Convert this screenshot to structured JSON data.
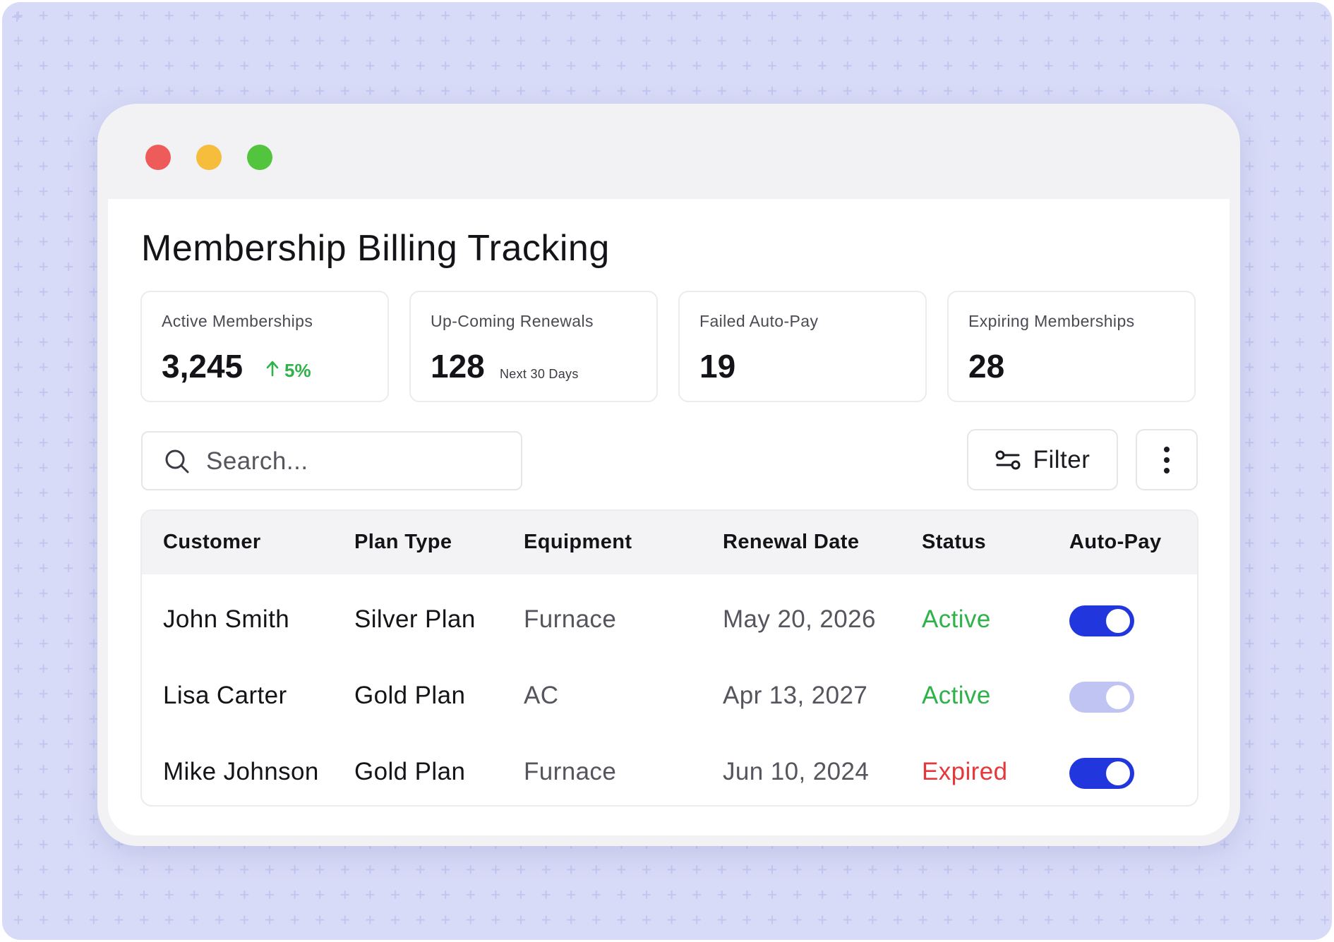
{
  "app": {
    "title": "Membership Billing Tracking"
  },
  "window_controls": [
    "close",
    "minimize",
    "maximize"
  ],
  "colors": {
    "accent": "#2236dd",
    "accent_dim": "#c0c4f2",
    "active": "#2fb24a",
    "expired": "#e5383b",
    "backdrop": "#d8dbf7"
  },
  "stats": [
    {
      "label": "Active Memberships",
      "value": "3,245",
      "trend": "5%",
      "trend_icon": "arrow-up-icon"
    },
    {
      "label": "Up-Coming Renewals",
      "value": "128",
      "note": "Next 30 Days"
    },
    {
      "label": "Failed Auto-Pay",
      "value": "19"
    },
    {
      "label": "Expiring Memberships",
      "value": "28"
    }
  ],
  "search": {
    "placeholder": "Search...",
    "value": ""
  },
  "toolbar": {
    "filter_label": "Filter",
    "filter_icon": "sliders-icon",
    "more_icon": "more-vertical-icon"
  },
  "table": {
    "headers": [
      "Customer",
      "Plan Type",
      "Equipment",
      "Renewal Date",
      "Status",
      "Auto-Pay"
    ],
    "rows": [
      {
        "customer": "John Smith",
        "plan": "Silver Plan",
        "equipment": "Furnace",
        "renewal": "May 20, 2026",
        "status": "Active",
        "autopay": "on"
      },
      {
        "customer": "Lisa Carter",
        "plan": "Gold Plan",
        "equipment": "AC",
        "renewal": "Apr 13, 2027",
        "status": "Active",
        "autopay": "on-disabled"
      },
      {
        "customer": "Mike Johnson",
        "plan": "Gold Plan",
        "equipment": "Furnace",
        "renewal": "Jun 10, 2024",
        "status": "Expired",
        "autopay": "on"
      }
    ]
  }
}
